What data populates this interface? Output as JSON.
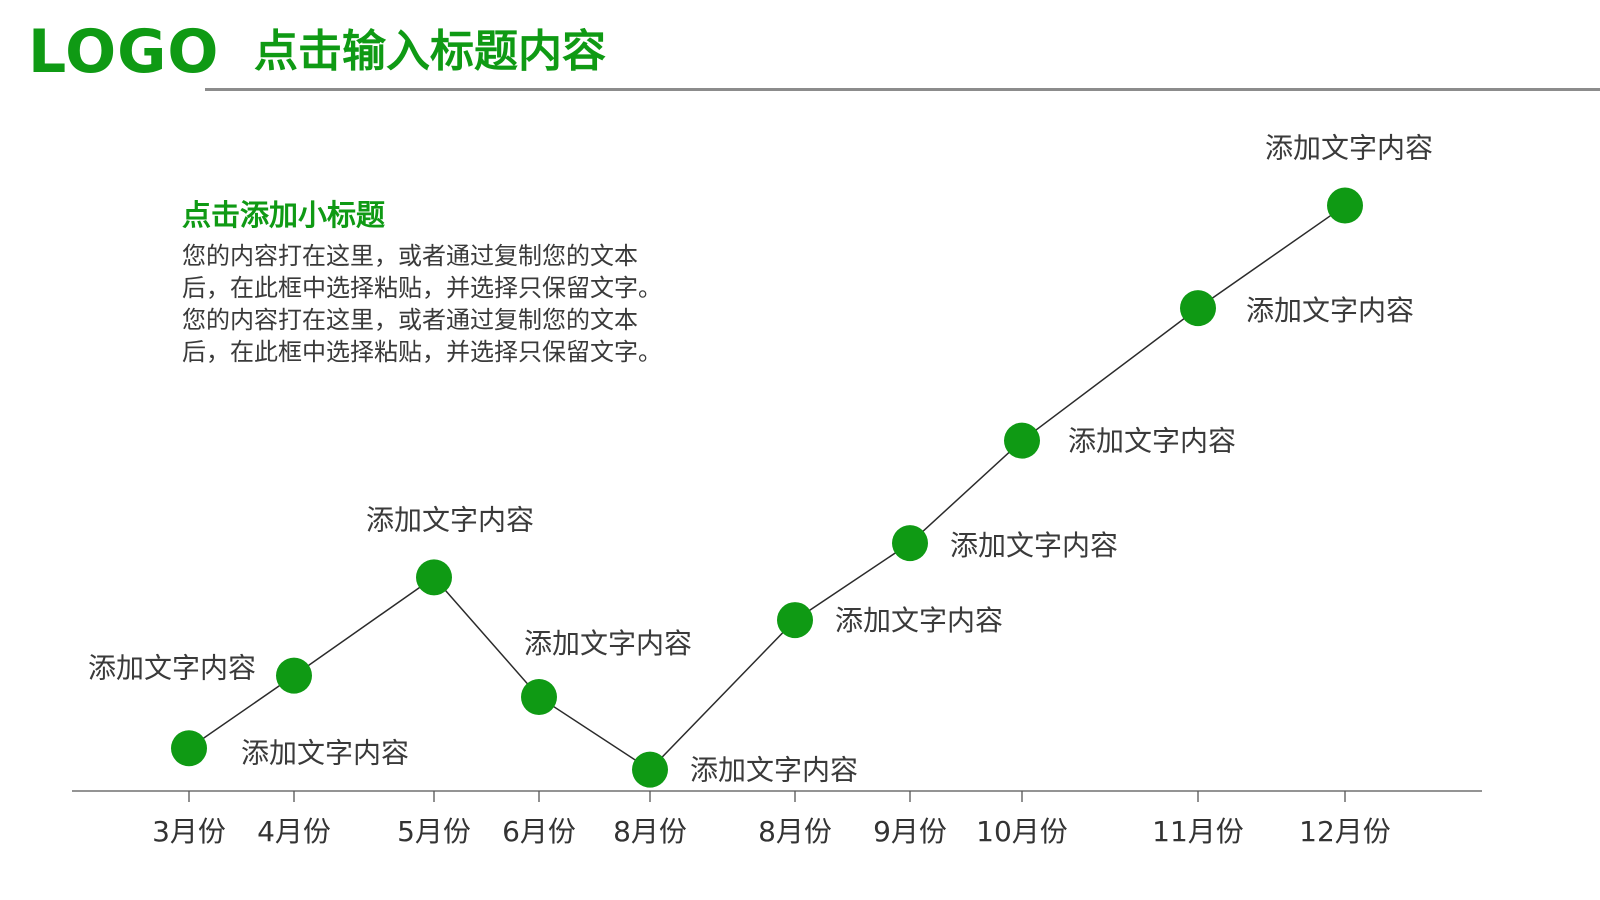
{
  "header": {
    "logo": "LOGO",
    "title": "点击输入标题内容"
  },
  "intro": {
    "subtitle": "点击添加小标题",
    "lines": [
      "您的内容打在这里，或者通过复制您的文本",
      "后，在此框中选择粘贴，并选择只保留文字。",
      "您的内容打在这里，或者通过复制您的文本",
      "后，在此框中选择粘贴，并选择只保留文字。"
    ]
  },
  "colors": {
    "accent": "#0f9a14",
    "line": "#2b2b2b",
    "axis": "#555555",
    "text": "#3a3a3a"
  },
  "chart_data": {
    "type": "line",
    "title": "",
    "xlabel": "",
    "ylabel": "",
    "categories": [
      "3月份",
      "4月份",
      "5月份",
      "6月份",
      "8月份",
      "8月份",
      "9月份",
      "10月份",
      "11月份",
      "12月份"
    ],
    "series": [
      {
        "values": [
          1,
          2.7,
          5.0,
          2.2,
          0.5,
          4.0,
          5.8,
          8.2,
          11.3,
          13.7
        ],
        "labels": [
          "添加文字内容",
          "添加文字内容",
          "添加文字内容",
          "添加文字内容",
          "添加文字内容",
          "添加文字内容",
          "添加文字内容",
          "添加文字内容",
          "添加文字内容",
          "添加文字内容"
        ]
      }
    ],
    "ylim": [
      0,
      15
    ],
    "grid": false,
    "legend": "none"
  }
}
